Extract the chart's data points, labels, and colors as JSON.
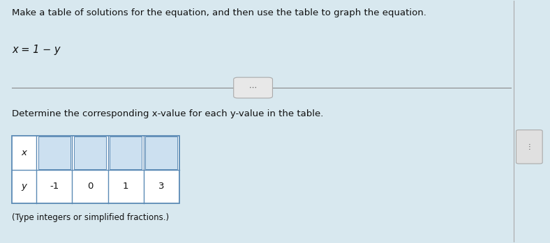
{
  "title_text": "Make a table of solutions for the equation, and then use the table to graph the equation.",
  "equation": "x = 1 − y",
  "subtitle": "Determine the corresponding x-value for each y-value in the table.",
  "note": "(Type integers or simplified fractions.)",
  "y_values": [
    "-1",
    "0",
    "1",
    "3"
  ],
  "x_label": "x",
  "y_label": "y",
  "bg_color": "#d8e8ef",
  "table_bg": "#ffffff",
  "table_border": "#5b8ab5",
  "input_box_color": "#cce0f0",
  "text_color": "#111111",
  "divider_color": "#888888",
  "title_fontsize": 9.5,
  "eq_fontsize": 10.5,
  "subtitle_fontsize": 9.5,
  "note_fontsize": 8.5
}
